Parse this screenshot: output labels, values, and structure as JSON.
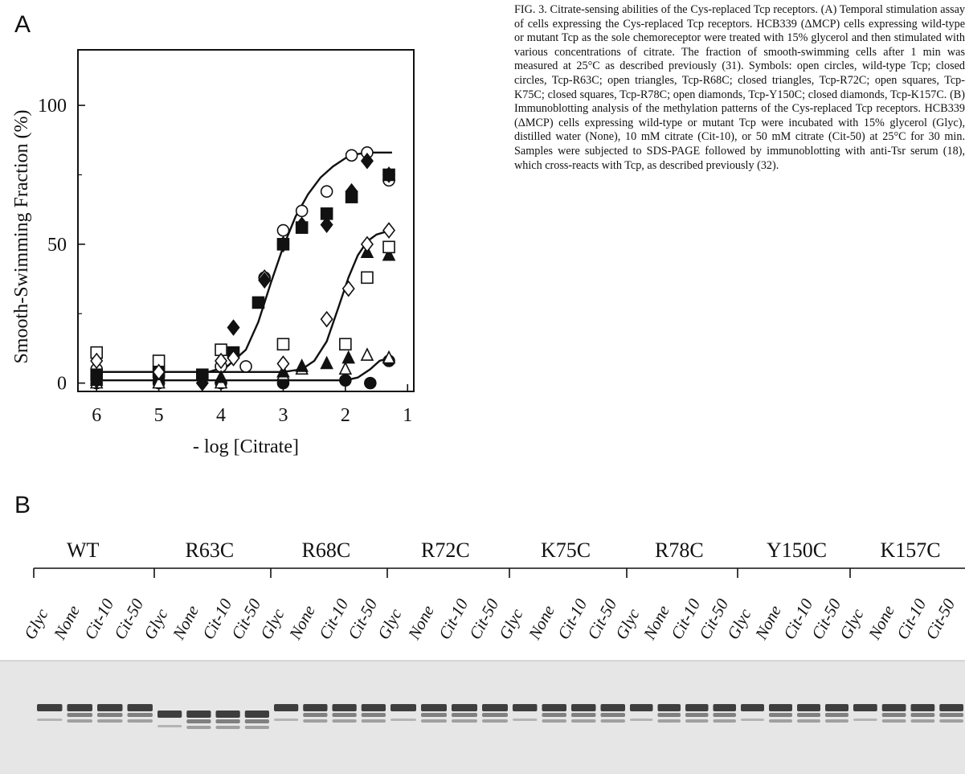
{
  "panel_a_label": "A",
  "panel_b_label": "B",
  "caption": "FIG. 3. Citrate-sensing abilities of the Cys-replaced Tcp receptors. (A) Temporal stimulation assay of cells expressing the Cys-replaced Tcp receptors. HCB339 (ΔMCP) cells expressing wild-type or mutant Tcp as the sole chemoreceptor were treated with 15% glycerol and then stimulated with various concentrations of citrate. The fraction of smooth-swimming cells after 1 min was measured at 25°C as described previously (31). Symbols: open circles, wild-type Tcp; closed circles, Tcp-R63C; open triangles, Tcp-R68C; closed triangles, Tcp-R72C; open squares, Tcp-K75C; closed squares, Tcp-R78C; open diamonds, Tcp-Y150C; closed diamonds, Tcp-K157C. (B) Immunoblotting analysis of the methylation patterns of the Cys-replaced Tcp receptors. HCB339 (ΔMCP) cells expressing wild-type or mutant Tcp were incubated with 15% glycerol (Glyc), distilled water (None), 10 mM citrate (Cit-10), or 50 mM citrate (Cit-50) at 25°C for 30 min. Samples were subjected to SDS-PAGE followed by immunoblotting with anti-Tsr serum (18), which cross-reacts with Tcp, as described previously (32).",
  "chart_data": {
    "type": "scatter",
    "xlabel": "- log [Citrate]",
    "ylabel": "Smooth-Swimming Fraction (%)",
    "x_ticks": [
      "6",
      "5",
      "4",
      "3",
      "2",
      "1"
    ],
    "y_ticks": [
      "0",
      "50",
      "100"
    ],
    "xlim": [
      6.3,
      0.9
    ],
    "ylim": [
      -3,
      120
    ],
    "x_reversed": true,
    "series": [
      {
        "name": "wild-type Tcp",
        "marker": "circle",
        "filled": false,
        "x": [
          6,
          5,
          4,
          3.6,
          3.3,
          3,
          2.7,
          2.3,
          1.9,
          1.65,
          1.3
        ],
        "y": [
          5,
          5,
          6,
          6,
          38,
          55,
          62,
          69,
          82,
          83,
          73
        ]
      },
      {
        "name": "Tcp-R63C",
        "marker": "circle",
        "filled": true,
        "x": [
          6,
          5,
          4,
          3,
          2,
          1.6,
          1.3
        ],
        "y": [
          0,
          0,
          0,
          0,
          1,
          0,
          8
        ]
      },
      {
        "name": "Tcp-R68C",
        "marker": "triangle",
        "filled": false,
        "x": [
          6,
          5,
          4,
          3,
          2.7,
          2,
          1.65,
          1.3
        ],
        "y": [
          0,
          0,
          0,
          3,
          5,
          5,
          10,
          9
        ]
      },
      {
        "name": "Tcp-R72C",
        "marker": "triangle",
        "filled": true,
        "x": [
          6,
          5,
          4,
          3,
          2.7,
          2.3,
          1.95,
          1.65,
          1.3
        ],
        "y": [
          1,
          3,
          2,
          4,
          6,
          7,
          9,
          47,
          46
        ]
      },
      {
        "name": "Tcp-K75C",
        "marker": "square",
        "filled": false,
        "x": [
          6,
          5,
          4,
          3,
          2,
          1.65,
          1.3
        ],
        "y": [
          11,
          8,
          12,
          14,
          14,
          38,
          49
        ]
      },
      {
        "name": "Tcp-R78C",
        "marker": "square",
        "filled": true,
        "x": [
          6,
          5,
          4.3,
          3.8,
          3.4,
          3,
          2.7,
          2.3,
          1.9,
          1.3
        ],
        "y": [
          3,
          4,
          3,
          11,
          29,
          50,
          56,
          61,
          67,
          75
        ]
      },
      {
        "name": "Tcp-Y150C",
        "marker": "diamond",
        "filled": false,
        "x": [
          6,
          5,
          4,
          3.8,
          3.3,
          3,
          2.3,
          1.95,
          1.65,
          1.3
        ],
        "y": [
          8,
          4,
          8,
          9,
          38,
          7,
          23,
          34,
          50,
          55
        ]
      },
      {
        "name": "Tcp-K157C",
        "marker": "diamond",
        "filled": true,
        "x": [
          6,
          4.3,
          3.8,
          3.3,
          3,
          2.7,
          2.3,
          1.9,
          1.65,
          1.3
        ],
        "y": [
          1,
          0,
          20,
          37,
          50,
          57,
          57,
          69,
          80,
          75
        ]
      }
    ],
    "fit_curves": [
      {
        "x": [
          6,
          5,
          4.2,
          3.9,
          3.6,
          3.4,
          3.2,
          3.0,
          2.8,
          2.6,
          2.4,
          2.2,
          2.0,
          1.8,
          1.6,
          1.4,
          1.25
        ],
        "y": [
          4,
          4,
          4,
          6,
          12,
          22,
          36,
          49,
          60,
          68,
          74,
          78,
          81,
          82.5,
          83,
          83,
          83
        ]
      },
      {
        "x": [
          6,
          5,
          4,
          3,
          2.7,
          2.5,
          2.3,
          2.1,
          1.95,
          1.8,
          1.65,
          1.5,
          1.35,
          1.25
        ],
        "y": [
          4,
          4,
          4,
          4,
          5,
          8,
          15,
          28,
          38,
          46,
          51,
          53.5,
          54.5,
          55
        ]
      },
      {
        "x": [
          6,
          5,
          4,
          3,
          2.4,
          2.0,
          1.8,
          1.6,
          1.45,
          1.3,
          1.25
        ],
        "y": [
          1,
          1,
          1,
          1,
          1,
          1,
          2,
          5,
          8,
          9,
          9
        ]
      }
    ]
  },
  "blot": {
    "groups": [
      {
        "label": "WT",
        "lanes": [
          "Glyc",
          "None",
          "Cit-10",
          "Cit-50"
        ]
      },
      {
        "label": "R63C",
        "lanes": [
          "Glyc",
          "None",
          "Cit-10",
          "Cit-50"
        ]
      },
      {
        "label": "R68C",
        "lanes": [
          "Glyc",
          "None",
          "Cit-10",
          "Cit-50"
        ]
      },
      {
        "label": "R72C",
        "lanes": [
          "Glyc",
          "None",
          "Cit-10",
          "Cit-50"
        ]
      },
      {
        "label": "K75C",
        "lanes": [
          "Glyc",
          "None",
          "Cit-10",
          "Cit-50"
        ]
      },
      {
        "label": "R78C",
        "lanes": [
          "Glyc",
          "None",
          "Cit-10",
          "Cit-50"
        ]
      },
      {
        "label": "Y150C",
        "lanes": [
          "Glyc",
          "None",
          "Cit-10",
          "Cit-50"
        ]
      },
      {
        "label": "K157C",
        "lanes": [
          "Glyc",
          "None",
          "Cit-10",
          "Cit-50"
        ]
      }
    ]
  }
}
